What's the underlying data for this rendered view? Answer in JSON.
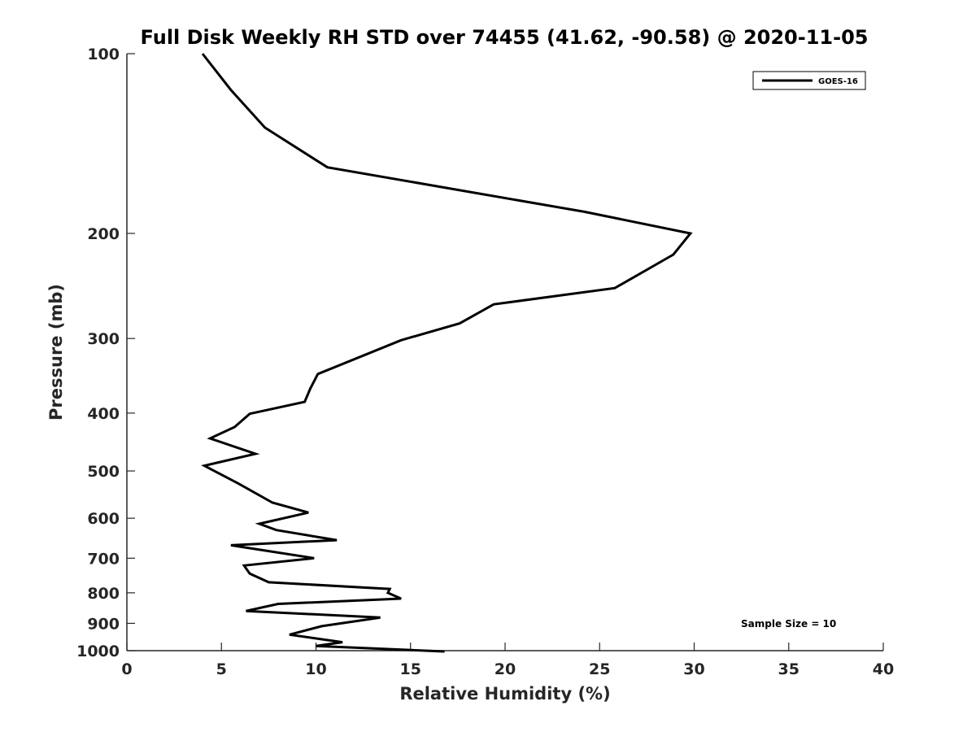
{
  "chart_data": {
    "type": "line",
    "title": "Full Disk Weekly RH STD over 74455 (41.62, -90.58) @ 2020-11-05",
    "xlabel": "Relative Humidity (%)",
    "ylabel": "Pressure (mb)",
    "xlim": [
      0,
      40
    ],
    "ylim": [
      100,
      1000
    ],
    "y_scale": "log",
    "y_reversed": true,
    "grid": false,
    "legend_position": "top-right",
    "x_ticks": [
      "0",
      "5",
      "10",
      "15",
      "20",
      "25",
      "30",
      "35",
      "40"
    ],
    "y_ticks": [
      "100",
      "200",
      "300",
      "400",
      "500",
      "600",
      "700",
      "800",
      "900",
      "1000"
    ],
    "series": [
      {
        "name": "GOES-16",
        "color": "#000000",
        "x": [
          4.0,
          5.5,
          7.3,
          10.6,
          24.2,
          29.8,
          28.9,
          25.8,
          19.4,
          17.6,
          14.5,
          10.1,
          9.7,
          9.4,
          6.5,
          5.7,
          4.4,
          6.8,
          4.1,
          5.9,
          7.7,
          9.6,
          7.0,
          7.9,
          11.1,
          5.5,
          9.9,
          6.2,
          6.5,
          7.5,
          13.9,
          13.8,
          14.5,
          8.0,
          6.3,
          13.4,
          10.3,
          8.6,
          11.4,
          10.0,
          16.8
        ],
        "y": [
          100,
          115,
          133,
          155,
          184,
          200,
          217,
          247,
          263,
          283,
          302,
          344,
          364,
          383,
          401,
          422,
          441,
          468,
          490,
          525,
          565,
          587,
          613,
          628,
          653,
          666,
          700,
          720,
          743,
          768,
          788,
          800,
          818,
          835,
          858,
          880,
          910,
          940,
          968,
          982,
          1003
        ]
      }
    ],
    "annotations": [
      "Sample Size = 10"
    ]
  }
}
